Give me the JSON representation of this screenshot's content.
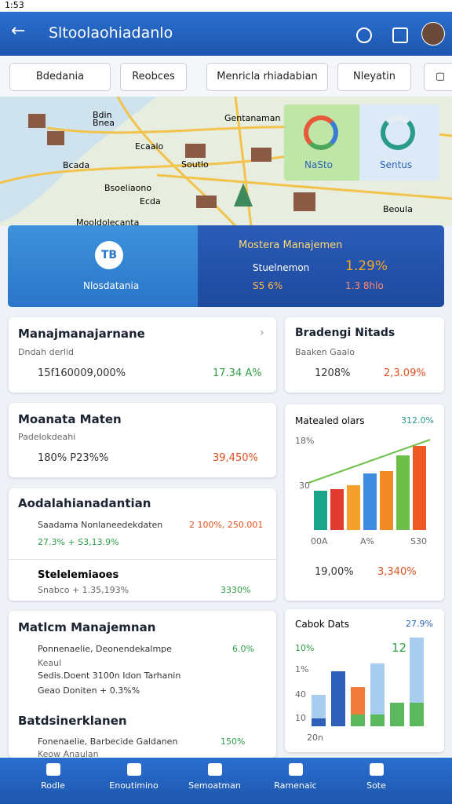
{
  "status_bar": {
    "time": "1:53"
  },
  "header": {
    "title": "Sltoolaohiadanlo"
  },
  "chips": [
    "Bdedania",
    "Reobces",
    "Menricla rhiadabian",
    "Nleyatin"
  ],
  "map": {
    "labels": [
      "Bnea",
      "Bdin",
      "Ecaalo",
      "Bcada",
      "Gentanaman",
      "Soutlo",
      "Bsoeliaono",
      "Beoula",
      "Mooldolecanta",
      "Ecda"
    ],
    "overlay": [
      "NaSto",
      "Sentus"
    ]
  },
  "banner": {
    "left_label": "Nlosdatania",
    "icon": "TB",
    "title": "Mostera Manajemen",
    "rows": [
      [
        "Stuelnemon",
        "1.29%"
      ],
      [
        "S5 6%",
        "1.3 8hlo"
      ]
    ]
  },
  "left_cards": [
    {
      "title": "Manajmanajarnane",
      "subtitle": "Dndah derlid",
      "value": "15f160009,000%",
      "change": "17.34 A%"
    },
    {
      "title": "Moanata Maten",
      "subtitle": "Padelokdeahi",
      "value": "180% P23%%",
      "change": "39,450%"
    },
    {
      "title": "Aodalahianadantian",
      "line1": "Saadama Nonlaneedekdaten",
      "line1_value": "2 100%, 250.001",
      "line2": "27.3% + S3,13.9%",
      "sub_title": "Stelelemiaoes",
      "sub_line": "Snabco + 1.35,193%",
      "sub_value": "3330%"
    },
    {
      "title": "Matlcm Manajemnan",
      "items": [
        "Ponnenaelie, Deonendekalmpe",
        "Keaul",
        "Sedis.Doent 3100n Idon Tarhanin",
        "Geao Doniten + 0.3%%"
      ],
      "items_value": "6.0%",
      "sub_title": "Batdsinerklanen",
      "sub_items": [
        "Fonenaelie, Barbecide Galdanen",
        "Keow Anaulan"
      ],
      "sub_value": "150%"
    }
  ],
  "right_cards": [
    {
      "title": "Bradengi Nitads",
      "subtitle": "Baaken Gaalo",
      "value": "1208%",
      "change": "2,3.09%"
    },
    {
      "title": "Matealed olars",
      "value": "312.0%",
      "y_labels": [
        "18%",
        "30"
      ],
      "x_labels": [
        "00A",
        "A%",
        "S30"
      ],
      "bars": [
        50,
        52,
        57,
        72,
        75,
        95,
        107
      ],
      "colors": [
        "#1aa58a",
        "#e03b2f",
        "#f4a02a",
        "#3f8de0",
        "#f08a24",
        "#6cc04a",
        "#ef5a24"
      ],
      "footer_value": "19,00%",
      "footer_change": "3,340%"
    },
    {
      "title": "Cabok Dats",
      "value": "27.9%",
      "labels": [
        "10%",
        "12"
      ],
      "y_labels": [
        "1%",
        "40",
        "10",
        "20n"
      ],
      "bars": [
        [
          {
            "value": 10,
            "color": "#2d5fb8"
          },
          {
            "value": 30,
            "color": "#a9cdee"
          }
        ],
        [
          {
            "value": 70,
            "color": "#2d5fb8"
          }
        ],
        [
          {
            "value": 15,
            "color": "#5cb85c"
          },
          {
            "value": 35,
            "color": "#f07b3a"
          }
        ],
        [
          {
            "value": 15,
            "color": "#5cb85c"
          },
          {
            "value": 65,
            "color": "#a9cdee"
          }
        ],
        [
          {
            "value": 30,
            "color": "#5cb85c"
          }
        ],
        [
          {
            "value": 30,
            "color": "#5cb85c"
          },
          {
            "value": 83,
            "color": "#a9cdee"
          }
        ]
      ]
    }
  ],
  "bottom_nav": [
    "Rodle",
    "Enoutimino",
    "Semoatman",
    "Ramenaic",
    "Sote"
  ]
}
